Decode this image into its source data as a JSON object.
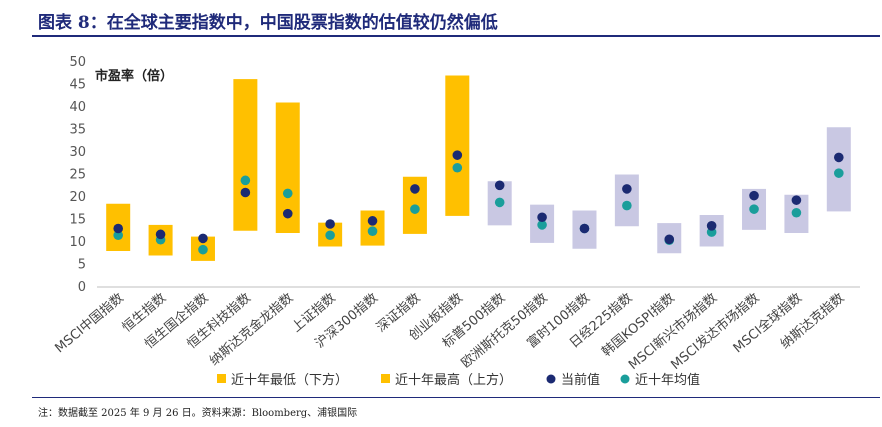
{
  "figure": {
    "title": "图表 8：在全球主要指数中，中国股票指数的估值较仍然偏低",
    "footnote": "注：数据截至 2025 年 9 月 26 日。资料来源：Bloomberg、浦银国际"
  },
  "colors": {
    "china_bar": "#FFC000",
    "global_bar": "#C9C8E3",
    "current_dot": "#1B2A72",
    "avg_dot": "#1A9E9B",
    "title": "#1f2a7a"
  },
  "chart_data": {
    "type": "floating-bar-with-markers",
    "ylabel": "市盈率（倍）",
    "ylim": [
      0,
      50
    ],
    "yticks": [
      0,
      5,
      10,
      15,
      20,
      25,
      30,
      35,
      40,
      45,
      50
    ],
    "grid": false,
    "legend_position": "bottom",
    "legend": [
      "近十年最低（下方）",
      "近十年最高（上方）",
      "当前值",
      "近十年均值"
    ],
    "categories": [
      "MSCI中国指数",
      "恒生指数",
      "恒生国企指数",
      "恒生科技指数",
      "纳斯达克金龙指数",
      "上证指数",
      "沪深300指数",
      "深证指数",
      "创业板指数",
      "标普500指数",
      "欧洲斯托克50指数",
      "富时100指数",
      "日经225指数",
      "韩国KOSPI指数",
      "MSCI新兴市场指数",
      "MSCI发达市场指数",
      "MSCI全球指数",
      "纳斯达克指数"
    ],
    "group": [
      "china",
      "china",
      "china",
      "china",
      "china",
      "china",
      "china",
      "china",
      "china",
      "global",
      "global",
      "global",
      "global",
      "global",
      "global",
      "global",
      "global",
      "global"
    ],
    "low": [
      8.0,
      7.0,
      5.8,
      12.5,
      12.0,
      9.0,
      9.2,
      11.8,
      15.8,
      13.7,
      9.8,
      8.5,
      13.5,
      7.5,
      9.0,
      12.7,
      12.0,
      16.8
    ],
    "high": [
      18.5,
      13.8,
      11.2,
      46.2,
      41.0,
      14.3,
      17.0,
      24.5,
      47.0,
      23.5,
      18.3,
      17.0,
      25.0,
      14.2,
      16.0,
      21.8,
      20.5,
      35.5
    ],
    "current": [
      13.0,
      11.7,
      10.8,
      21.0,
      16.3,
      14.0,
      14.7,
      21.8,
      29.3,
      22.6,
      15.5,
      13.0,
      21.8,
      10.6,
      13.6,
      20.3,
      19.3,
      28.8
    ],
    "average": [
      11.5,
      10.5,
      8.3,
      23.7,
      20.8,
      11.5,
      12.4,
      17.3,
      26.5,
      18.8,
      13.8,
      13.0,
      18.1,
      10.4,
      12.2,
      17.3,
      16.5,
      25.3
    ]
  }
}
